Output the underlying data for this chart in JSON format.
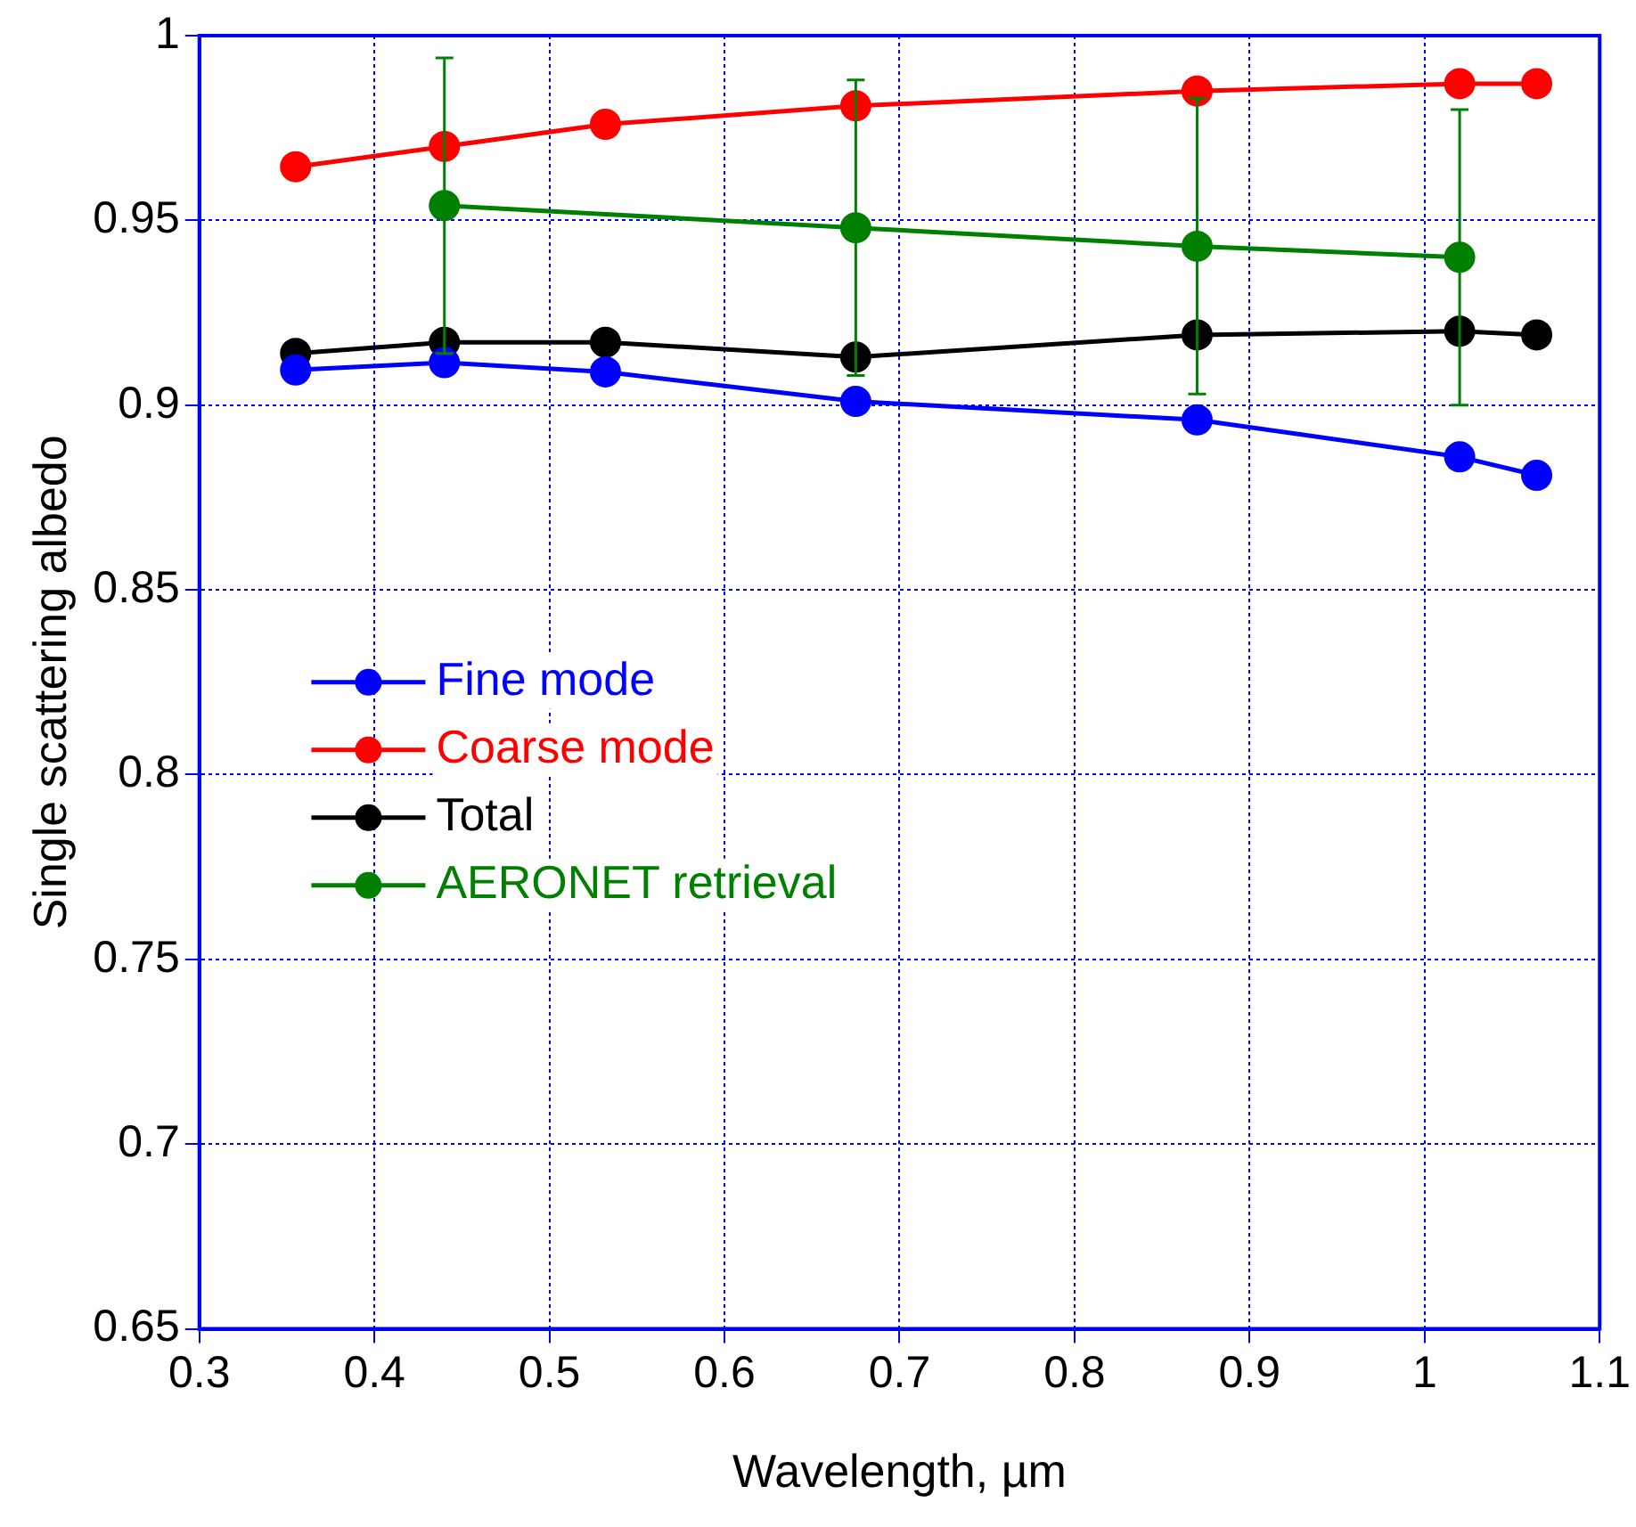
{
  "chart_data": {
    "type": "line",
    "xlabel": "Wavelength, µm",
    "ylabel": "Single scattering albedo",
    "xlim": [
      0.3,
      1.1
    ],
    "xticks": [
      0.3,
      0.4,
      0.5,
      0.6,
      0.7,
      0.8,
      0.9,
      1,
      1.1
    ],
    "ylim": [
      0.65,
      1
    ],
    "yticks": [
      0.65,
      0.7,
      0.75,
      0.8,
      0.85,
      0.9,
      0.95,
      1
    ],
    "grid": true,
    "legend": "center left",
    "marker": "circle",
    "line_style": "solid",
    "series": [
      {
        "name": "Fine mode",
        "color": "#0000ff",
        "x": [
          0.355,
          0.44,
          0.532,
          0.675,
          0.87,
          1.02,
          1.064
        ],
        "values": [
          0.9095,
          0.9115,
          0.909,
          0.901,
          0.896,
          0.886,
          0.881
        ]
      },
      {
        "name": "Coarse mode",
        "color": "#ff0000",
        "x": [
          0.355,
          0.44,
          0.532,
          0.675,
          0.87,
          1.02,
          1.064
        ],
        "values": [
          0.9645,
          0.97,
          0.976,
          0.981,
          0.985,
          0.987,
          0.987
        ]
      },
      {
        "name": "Total",
        "color": "#000000",
        "x": [
          0.355,
          0.44,
          0.532,
          0.675,
          0.87,
          1.02,
          1.064
        ],
        "values": [
          0.914,
          0.917,
          0.917,
          0.913,
          0.919,
          0.92,
          0.919
        ]
      },
      {
        "name": "AERONET retrieval",
        "color": "#008000",
        "x": [
          0.44,
          0.675,
          0.87,
          1.02
        ],
        "values": [
          0.954,
          0.948,
          0.943,
          0.94
        ],
        "errors": [
          0.04,
          0.04,
          0.04,
          0.04
        ]
      }
    ]
  }
}
